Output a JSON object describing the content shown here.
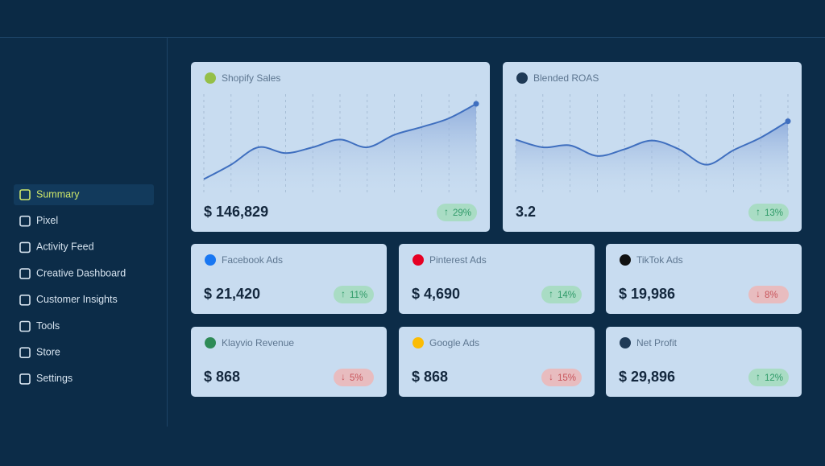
{
  "sidebar": {
    "items": [
      {
        "label": "Summary",
        "active": true
      },
      {
        "label": "Pixel",
        "active": false
      },
      {
        "label": "Activity Feed",
        "active": false
      },
      {
        "label": "Creative Dashboard",
        "active": false
      },
      {
        "label": "Customer Insights",
        "active": false
      },
      {
        "label": "Tools",
        "active": false
      },
      {
        "label": "Store",
        "active": false
      },
      {
        "label": "Settings",
        "active": false
      }
    ]
  },
  "cards": [
    {
      "title": "Shopify Sales",
      "value": "$ 146,829",
      "change": "29%",
      "trend": "up",
      "ylim": [
        0,
        100
      ],
      "sparkline": [
        12,
        27,
        45,
        39,
        45,
        53,
        45,
        58,
        66,
        75,
        90
      ]
    },
    {
      "title": "Blended ROAS",
      "value": "3.2",
      "change": "13%",
      "trend": "up",
      "ylim": [
        0,
        100
      ],
      "sparkline": [
        53,
        45,
        47,
        36,
        43,
        52,
        43,
        27,
        42,
        55,
        72
      ]
    },
    {
      "title": "Facebook Ads",
      "value": "$ 21,420",
      "change": "11%",
      "trend": "up"
    },
    {
      "title": "Pinterest Ads",
      "value": "$ 4,690",
      "change": "14%",
      "trend": "up"
    },
    {
      "title": "TikTok Ads",
      "value": "$ 19,986",
      "change": "8%",
      "trend": "down"
    },
    {
      "title": "Klayvio Revenue",
      "value": "$ 868",
      "change": "5%",
      "trend": "down"
    },
    {
      "title": "Google Ads",
      "value": "$ 868",
      "change": "15%",
      "trend": "down"
    },
    {
      "title": "Net Profit",
      "value": "$ 29,896",
      "change": "12%",
      "trend": "up"
    }
  ]
}
